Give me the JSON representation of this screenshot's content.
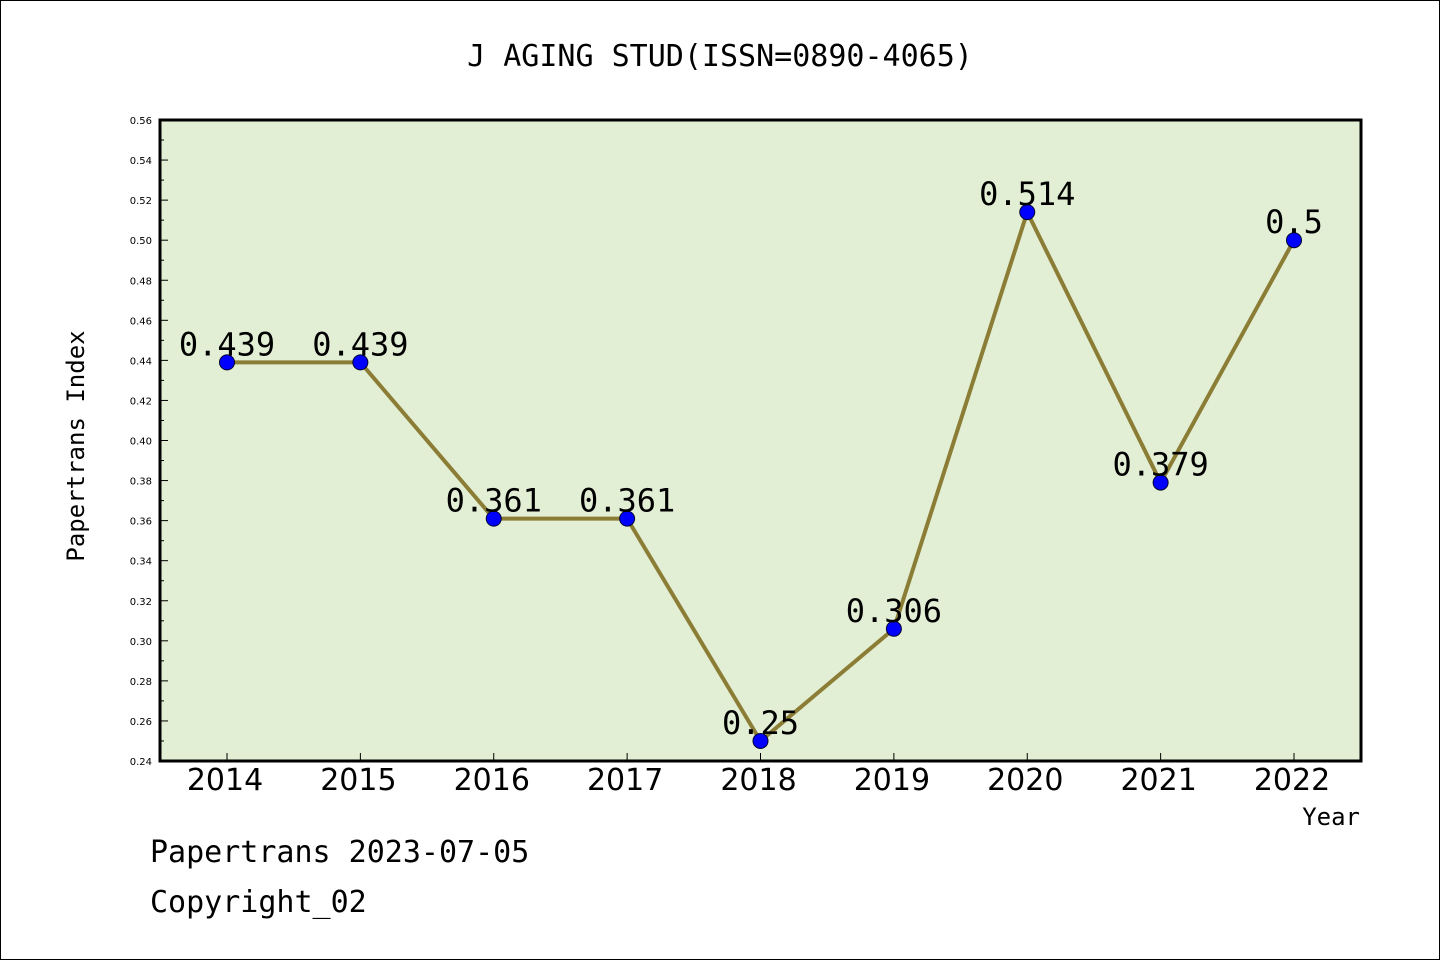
{
  "chart_data": {
    "type": "line",
    "title": "J AGING STUD(ISSN=0890-4065)",
    "xlabel": "Year",
    "ylabel": "Papertrans Index",
    "categories": [
      "2014",
      "2015",
      "2016",
      "2017",
      "2018",
      "2019",
      "2020",
      "2021",
      "2022"
    ],
    "values": [
      0.439,
      0.439,
      0.361,
      0.361,
      0.25,
      0.306,
      0.514,
      0.379,
      0.5
    ],
    "data_labels": [
      "0.439",
      "0.439",
      "0.361",
      "0.361",
      "0.25",
      "0.306",
      "0.514",
      "0.379",
      "0.5"
    ],
    "ylim": [
      0.24,
      0.56
    ],
    "yticks": [
      "0.24",
      "0.26",
      "0.28",
      "0.30",
      "0.32",
      "0.34",
      "0.36",
      "0.38",
      "0.40",
      "0.42",
      "0.44",
      "0.46",
      "0.48",
      "0.50",
      "0.52",
      "0.54",
      "0.56"
    ],
    "grid": false,
    "colors": {
      "plot_background": "#e2efd4",
      "line": "#8b7d35",
      "marker": "#0000ff"
    }
  },
  "footer": {
    "line1": "Papertrans 2023-07-05",
    "line2": "Copyright_02"
  }
}
